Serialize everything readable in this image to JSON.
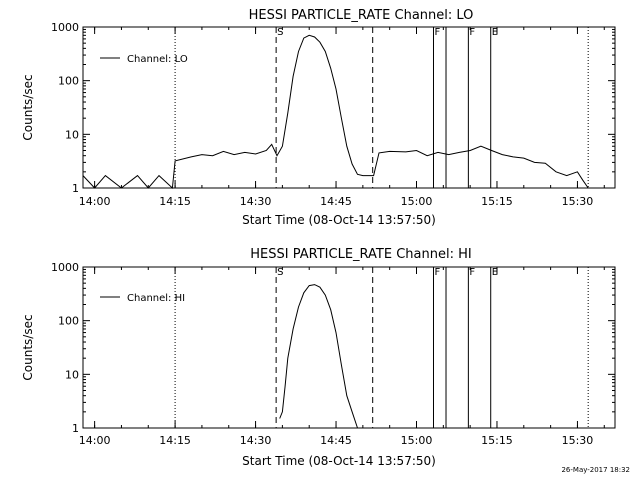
{
  "footer": {
    "date": "26-May-2017 18:32"
  },
  "chart_data": [
    {
      "type": "line",
      "title": "HESSI PARTICLE_RATE Channel: LO",
      "xlabel": "Start Time (08-Oct-14 13:57:50)",
      "ylabel": "Counts/sec",
      "yscale": "log",
      "xlim": [
        "13:57:50",
        "15:37:00"
      ],
      "ylim": [
        1,
        1000
      ],
      "xticks": [
        "14:00",
        "14:15",
        "14:30",
        "14:45",
        "15:00",
        "15:15",
        "15:30"
      ],
      "yticks": [
        "1",
        "10",
        "100",
        "1000"
      ],
      "legend": {
        "label": "Channel: LO",
        "position": "top-left"
      },
      "markers": [
        {
          "label": "",
          "time": "14:15:00",
          "style": "dotted"
        },
        {
          "label": "S",
          "time": "14:33:50",
          "style": "dashed"
        },
        {
          "label": "",
          "time": "14:51:50",
          "style": "dashed"
        },
        {
          "label": "F",
          "time": "15:03:10",
          "style": "solid"
        },
        {
          "label": "",
          "time": "15:05:30",
          "style": "solid"
        },
        {
          "label": "F",
          "time": "15:09:40",
          "style": "solid"
        },
        {
          "label": "E",
          "time": "15:13:50",
          "style": "solid"
        },
        {
          "label": "",
          "time": "15:32:00",
          "style": "dotted"
        }
      ],
      "series": [
        {
          "name": "Channel: LO",
          "x": [
            "13:57:50",
            "14:00:00",
            "14:02:00",
            "14:05:00",
            "14:08:00",
            "14:10:00",
            "14:12:00",
            "14:14:30",
            "14:15:00",
            "14:18:00",
            "14:20:00",
            "14:22:00",
            "14:24:00",
            "14:26:00",
            "14:28:00",
            "14:30:00",
            "14:32:00",
            "14:33:00",
            "14:34:00",
            "14:35:00",
            "14:36:00",
            "14:37:00",
            "14:38:00",
            "14:39:00",
            "14:40:00",
            "14:41:00",
            "14:42:00",
            "14:43:00",
            "14:44:00",
            "14:45:00",
            "14:46:00",
            "14:47:00",
            "14:48:00",
            "14:49:00",
            "14:50:00",
            "14:52:00",
            "14:53:00",
            "14:55:00",
            "14:58:00",
            "15:00:00",
            "15:02:00",
            "15:04:00",
            "15:06:00",
            "15:08:00",
            "15:10:00",
            "15:12:00",
            "15:14:00",
            "15:16:00",
            "15:18:00",
            "15:20:00",
            "15:22:00",
            "15:24:00",
            "15:26:00",
            "15:28:00",
            "15:30:00",
            "15:31:00",
            "15:32:00"
          ],
          "values": [
            1.7,
            1.0,
            1.7,
            1.0,
            1.7,
            1.0,
            1.7,
            1.0,
            3.2,
            3.8,
            4.2,
            4.0,
            4.8,
            4.2,
            4.6,
            4.3,
            5.0,
            6.5,
            4.0,
            6,
            25,
            120,
            350,
            620,
            700,
            650,
            520,
            350,
            170,
            70,
            20,
            6,
            2.8,
            1.8,
            1.7,
            1.7,
            4.5,
            4.8,
            4.7,
            5.0,
            4.0,
            4.6,
            4.2,
            4.6,
            5.0,
            6.0,
            5.0,
            4.2,
            3.8,
            3.6,
            3.0,
            2.9,
            2.0,
            1.7,
            2.0,
            1.4,
            1.0
          ]
        }
      ]
    },
    {
      "type": "line",
      "title": "HESSI PARTICLE_RATE Channel: HI",
      "xlabel": "Start Time (08-Oct-14 13:57:50)",
      "ylabel": "Counts/sec",
      "yscale": "log",
      "xlim": [
        "13:57:50",
        "15:37:00"
      ],
      "ylim": [
        1,
        1000
      ],
      "xticks": [
        "14:00",
        "14:15",
        "14:30",
        "14:45",
        "15:00",
        "15:15",
        "15:30"
      ],
      "yticks": [
        "1",
        "10",
        "100",
        "1000"
      ],
      "legend": {
        "label": "Channel: HI",
        "position": "top-left"
      },
      "markers": [
        {
          "label": "",
          "time": "14:15:00",
          "style": "dotted"
        },
        {
          "label": "S",
          "time": "14:33:50",
          "style": "dashed"
        },
        {
          "label": "",
          "time": "14:51:50",
          "style": "dashed"
        },
        {
          "label": "F",
          "time": "15:03:10",
          "style": "solid"
        },
        {
          "label": "",
          "time": "15:05:30",
          "style": "solid"
        },
        {
          "label": "F",
          "time": "15:09:40",
          "style": "solid"
        },
        {
          "label": "E",
          "time": "15:13:50",
          "style": "solid"
        },
        {
          "label": "",
          "time": "15:32:00",
          "style": "dotted"
        }
      ],
      "series": [
        {
          "name": "Channel: HI",
          "x": [
            "14:34:30",
            "14:35:00",
            "14:35:30",
            "14:36:00",
            "14:37:00",
            "14:38:00",
            "14:39:00",
            "14:40:00",
            "14:41:00",
            "14:42:00",
            "14:43:00",
            "14:44:00",
            "14:45:00",
            "14:46:00",
            "14:47:00",
            "14:48:00",
            "14:49:00"
          ],
          "values": [
            1.5,
            2,
            6,
            20,
            70,
            180,
            330,
            450,
            470,
            420,
            300,
            160,
            60,
            15,
            4,
            2,
            1
          ]
        }
      ]
    }
  ]
}
